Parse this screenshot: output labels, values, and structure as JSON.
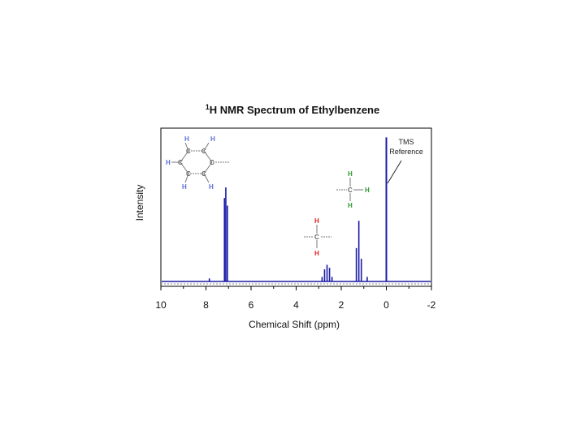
{
  "chart_data": {
    "type": "line",
    "title": "H NMR Spectrum of Ethylbenzene",
    "title_superscript": "1",
    "xlabel": "Chemical Shift (ppm)",
    "ylabel": "Intensity",
    "xlim": [
      10,
      -2
    ],
    "ylim": [
      0,
      1.0
    ],
    "x_reversed": true,
    "grid": false,
    "xticks": [
      10,
      8,
      6,
      4,
      2,
      0,
      -2
    ],
    "xtick_labels": [
      "10",
      "8",
      "6",
      "4",
      "2",
      "0",
      "-2"
    ],
    "series": [
      {
        "color": "#1a1aa6",
        "peaks": [
          {
            "x": 7.85,
            "y": 0.02
          },
          {
            "x": 7.18,
            "y": 0.55
          },
          {
            "x": 7.12,
            "y": 0.62
          },
          {
            "x": 7.05,
            "y": 0.5
          },
          {
            "x": 2.85,
            "y": 0.03
          },
          {
            "x": 2.74,
            "y": 0.08
          },
          {
            "x": 2.63,
            "y": 0.11
          },
          {
            "x": 2.52,
            "y": 0.09
          },
          {
            "x": 2.41,
            "y": 0.03
          },
          {
            "x": 1.33,
            "y": 0.22
          },
          {
            "x": 1.22,
            "y": 0.4
          },
          {
            "x": 1.11,
            "y": 0.15
          },
          {
            "x": 0.85,
            "y": 0.03
          },
          {
            "x": 0.0,
            "y": 0.95
          }
        ]
      }
    ],
    "annotations": [
      {
        "text": "TMS"
      },
      {
        "text": "Reference"
      }
    ],
    "structures": {
      "atom_symbols": {
        "H": "H",
        "C": "C"
      }
    },
    "colors": {
      "spectrum": "#1a1aa6",
      "frame": "#000000",
      "aromatic_h": "#5a6fd8",
      "methylene_h": "#e02020",
      "methyl_h": "#2a9a2a",
      "carbon": "#666666"
    }
  }
}
